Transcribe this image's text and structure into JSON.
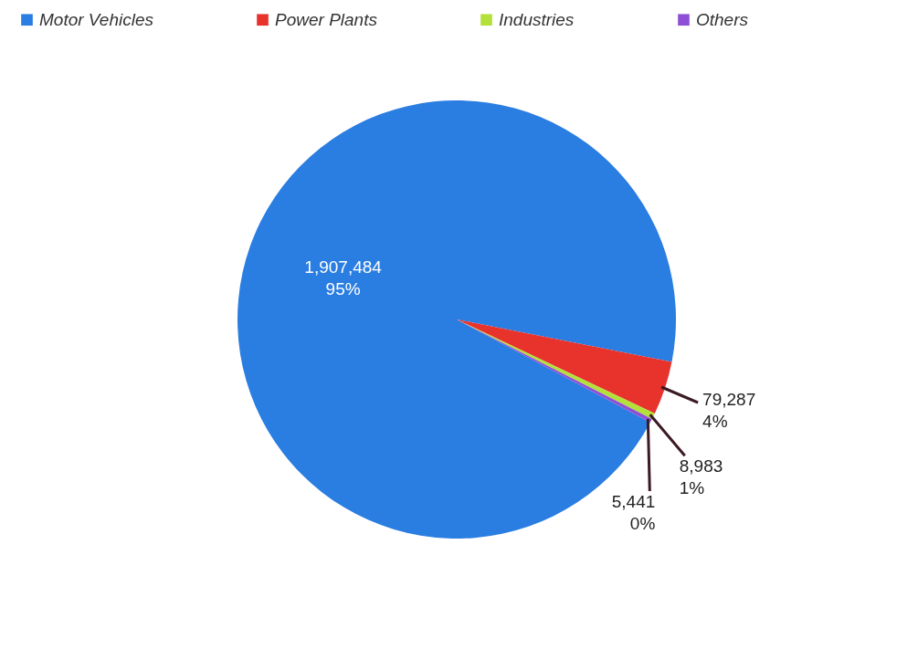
{
  "chart_data": {
    "type": "pie",
    "categories": [
      "Motor Vehicles",
      "Power Plants",
      "Industries",
      "Others"
    ],
    "values": [
      1907484,
      79287,
      8983,
      5441
    ],
    "colors": [
      "#2a7de1",
      "#e8322c",
      "#b3e03a",
      "#8e4fd6"
    ],
    "value_labels": [
      "1,907,484\n95%",
      "79,287\n4%",
      "8,983\n1%",
      "5,441\n0%"
    ],
    "legend": "top"
  }
}
